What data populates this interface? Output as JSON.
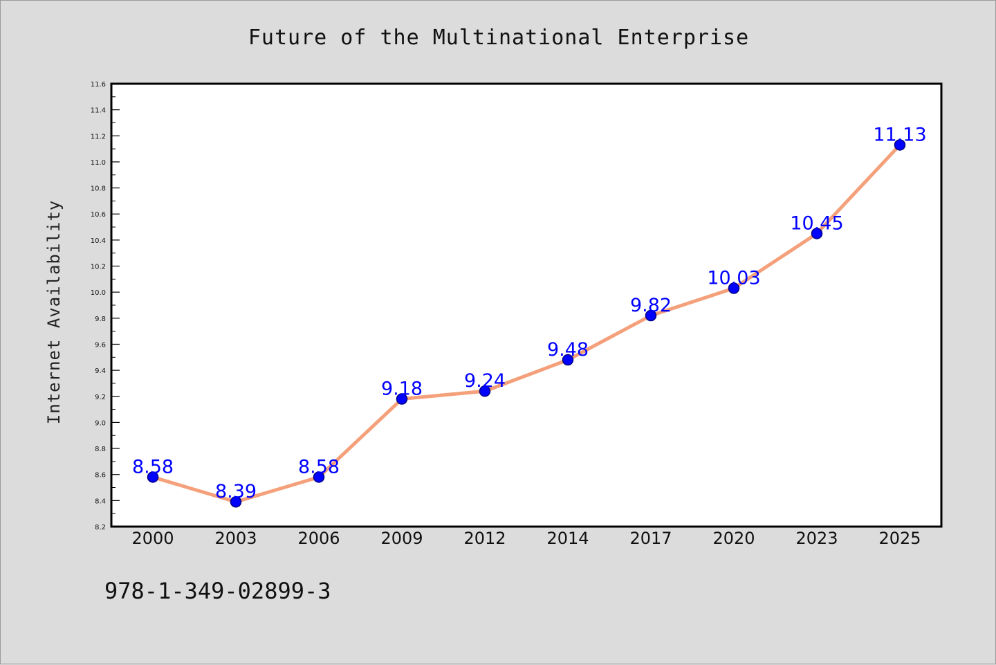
{
  "chart_data": {
    "type": "line",
    "title": "Future of the Multinational Enterprise",
    "xlabel": "",
    "ylabel": "Internet Availability",
    "categories": [
      "2000",
      "2003",
      "2006",
      "2009",
      "2012",
      "2014",
      "2017",
      "2020",
      "2023",
      "2025"
    ],
    "series": [
      {
        "values": [
          8.58,
          8.39,
          8.58,
          9.18,
          9.24,
          9.48,
          9.82,
          10.03,
          10.45,
          11.13
        ]
      }
    ],
    "data_labels": [
      "8.58",
      "8.39",
      "8.58",
      "9.18",
      "9.24",
      "9.48",
      "9.82",
      "10.03",
      "10.45",
      "11.13"
    ],
    "ylim": [
      8.2,
      11.6
    ],
    "yticks": [
      "8.2",
      "8.4",
      "8.6",
      "8.8",
      "9.0",
      "9.2",
      "9.4",
      "9.6",
      "9.8",
      "10.0",
      "10.2",
      "10.4",
      "10.6",
      "10.8",
      "11.0",
      "11.2",
      "11.4",
      "11.6"
    ],
    "grid": false,
    "legend": "none",
    "colors": {
      "line": "#f4a07a",
      "marker_fill": "#0000ff",
      "marker_edge": "#000080",
      "data_label": "#0000ff",
      "background": "#dcdcdc",
      "plot_background": "#ffffff"
    }
  },
  "footer": {
    "isbn": "978-1-349-02899-3"
  }
}
